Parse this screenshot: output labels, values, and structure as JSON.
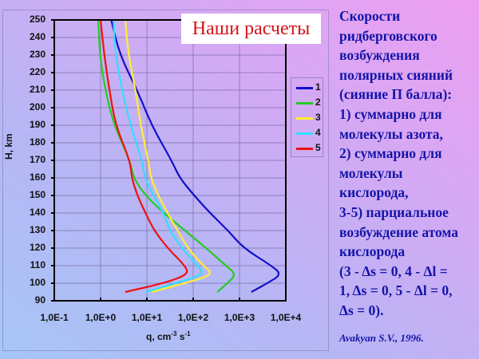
{
  "slide": {
    "chart_title_box": "Наши расчеты",
    "side_text_lines": [
      "Скорости",
      "ридберговского",
      "возбуждения",
      "полярных сияний",
      "(сияние П балла):",
      "1) суммарно для",
      "молекулы азота,",
      "2) суммарно для",
      "молекулы",
      "кислорода,",
      "3-5) парциальное",
      "возбуждение атома",
      "кислорода",
      "(3 - Δs = 0, 4 - Δl =",
      "1, Δs = 0, 5 - Δl = 0,",
      "Δs = 0)."
    ],
    "credit": "Avakyan S.V., 1996."
  },
  "axes": {
    "ylabel": "H, km",
    "xlabel_base": "q, cm",
    "xlabel_exp1": "-3",
    "xlabel_mid": " s",
    "xlabel_exp2": "-1",
    "yticks": [
      "250",
      "240",
      "230",
      "220",
      "210",
      "200",
      "190",
      "180",
      "170",
      "160",
      "150",
      "140",
      "130",
      "120",
      "110",
      "100",
      "90"
    ],
    "xticks": [
      "1,0E-1",
      "1,0E+0",
      "1,0E+1",
      "1,0E+2",
      "1,0E+3",
      "1,0E+4"
    ]
  },
  "legend": [
    {
      "label": "1",
      "color": "#1010c8"
    },
    {
      "label": "2",
      "color": "#22cc22"
    },
    {
      "label": "3",
      "color": "#ffee33"
    },
    {
      "label": "4",
      "color": "#33ddff"
    },
    {
      "label": "5",
      "color": "#ee1111"
    }
  ],
  "chart_data": {
    "type": "line",
    "title": "Наши расчеты",
    "xlabel": "q, cm^-3 s^-1",
    "ylabel": "H, km",
    "xscale": "log",
    "xlim": [
      0.1,
      10000
    ],
    "ylim": [
      90,
      250
    ],
    "grid": true,
    "legend_position": "right",
    "x_tick_labels": [
      "1,0E-1",
      "1,0E+0",
      "1,0E+1",
      "1,0E+2",
      "1,0E+3",
      "1,0E+4"
    ],
    "y_ticks": [
      90,
      100,
      110,
      120,
      130,
      140,
      150,
      160,
      170,
      180,
      190,
      200,
      210,
      220,
      230,
      240,
      250
    ],
    "series": [
      {
        "name": "1",
        "color": "#1010c8",
        "H": [
          250,
          230,
          210,
          190,
          170,
          160,
          150,
          140,
          130,
          120,
          110,
          105,
          100,
          95
        ],
        "q": [
          1.7,
          2.6,
          6.2,
          12.6,
          34,
          51,
          105,
          230,
          570,
          1220,
          4900,
          8100,
          4000,
          1800
        ]
      },
      {
        "name": "2",
        "color": "#22cc22",
        "H": [
          250,
          230,
          210,
          190,
          170,
          160,
          150,
          140,
          130,
          120,
          110,
          105,
          100,
          95
        ],
        "q": [
          0.89,
          0.96,
          1.26,
          1.95,
          4.3,
          5.1,
          9.3,
          23,
          67,
          190,
          510,
          850,
          550,
          330
        ]
      },
      {
        "name": "3",
        "color": "#ffee33",
        "H": [
          250,
          230,
          210,
          190,
          170,
          160,
          150,
          140,
          130,
          120,
          110,
          105,
          100,
          95
        ],
        "q": [
          3.4,
          4.0,
          5.7,
          7.3,
          10.7,
          12.2,
          17.5,
          28,
          46,
          76,
          165,
          280,
          67,
          12.6
        ]
      },
      {
        "name": "4",
        "color": "#33ddff",
        "H": [
          250,
          230,
          210,
          190,
          170,
          160,
          150,
          140,
          130,
          120,
          110,
          105,
          100,
          95
        ],
        "q": [
          1.9,
          2.1,
          2.9,
          4.4,
          7.9,
          8.9,
          13.8,
          23,
          31,
          57,
          123,
          175,
          42,
          9.6
        ]
      },
      {
        "name": "5",
        "color": "#ee1111",
        "H": [
          250,
          230,
          210,
          190,
          170,
          160,
          150,
          140,
          130,
          120,
          110,
          105,
          100,
          95
        ],
        "q": [
          1.0,
          1.2,
          1.55,
          2.1,
          4.3,
          4.7,
          6.2,
          9.3,
          14.4,
          28,
          67,
          79,
          23,
          3.4
        ]
      }
    ]
  }
}
